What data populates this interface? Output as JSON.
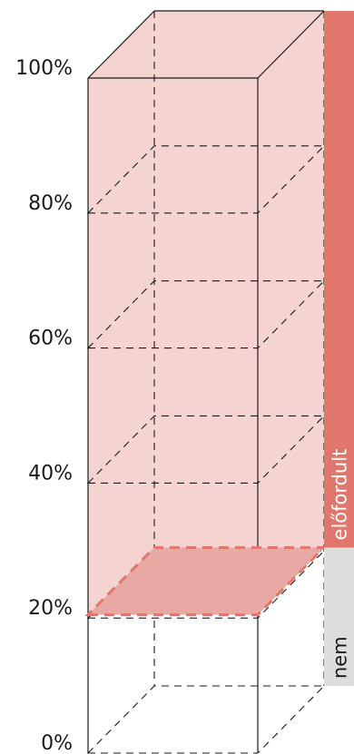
{
  "chart_data": {
    "type": "bar",
    "y_ticks": [
      "0%",
      "20%",
      "40%",
      "60%",
      "80%",
      "100%"
    ],
    "ylim": [
      0,
      100
    ],
    "series": [
      {
        "name": "előfordult",
        "value": 79.5,
        "color": "#e0766c"
      },
      {
        "name": "nem",
        "value": 20.5,
        "color": "#dddddd"
      }
    ],
    "threshold_value": 20.5,
    "fill_color": "#f4d3d0",
    "fill_color_dark": "#e8a8a3"
  }
}
